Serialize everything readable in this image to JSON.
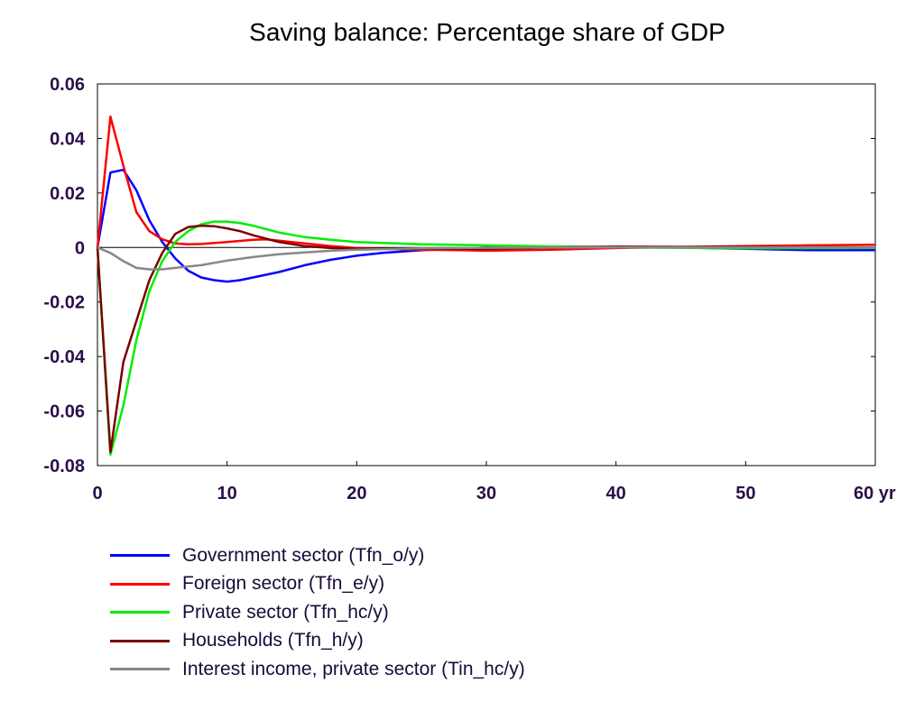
{
  "chart_data": {
    "type": "line",
    "title": "Saving balance: Percentage share of GDP",
    "xlabel": "",
    "ylabel": "",
    "xlim": [
      0,
      60
    ],
    "ylim": [
      -0.08,
      0.06
    ],
    "x_ticks": [
      "0",
      "10",
      "20",
      "30",
      "40",
      "50",
      "60 yr"
    ],
    "x_tick_values": [
      0,
      10,
      20,
      30,
      40,
      50,
      60
    ],
    "y_ticks": [
      "0.06",
      "0.04",
      "0.02",
      "0",
      "-0.02",
      "-0.04",
      "-0.06",
      "-0.08"
    ],
    "y_tick_values": [
      0.06,
      0.04,
      0.02,
      0,
      -0.02,
      -0.04,
      -0.06,
      -0.08
    ],
    "grid": false,
    "zero_line": true,
    "legend_position": "bottom-left",
    "series": [
      {
        "name": "Government sector (Tfn_o/y)",
        "color": "#0000ff",
        "x": [
          0,
          1,
          2,
          3,
          4,
          5,
          6,
          7,
          8,
          9,
          10,
          11,
          12,
          14,
          16,
          18,
          20,
          22,
          25,
          28,
          30,
          35,
          40,
          45,
          50,
          55,
          60
        ],
        "y": [
          0,
          0.0275,
          0.0285,
          0.021,
          0.01,
          0.002,
          -0.004,
          -0.0085,
          -0.011,
          -0.012,
          -0.0125,
          -0.012,
          -0.011,
          -0.009,
          -0.0065,
          -0.0045,
          -0.003,
          -0.002,
          -0.001,
          -0.0005,
          0,
          0.0003,
          0.0002,
          0,
          -0.0005,
          -0.001,
          -0.001
        ]
      },
      {
        "name": "Foreign sector (Tfn_e/y)",
        "color": "#ff0000",
        "x": [
          0,
          1,
          2,
          3,
          4,
          5,
          6,
          7,
          8,
          10,
          12,
          13,
          14,
          16,
          18,
          20,
          22,
          25,
          28,
          30,
          35,
          40,
          45,
          50,
          55,
          60
        ],
        "y": [
          0,
          0.048,
          0.03,
          0.013,
          0.006,
          0.003,
          0.0015,
          0.0012,
          0.0013,
          0.002,
          0.0028,
          0.003,
          0.0025,
          0.0015,
          0.0005,
          -0.0002,
          -0.0005,
          -0.0008,
          -0.001,
          -0.0012,
          -0.0008,
          -0.0002,
          0.0002,
          0.0005,
          0.0008,
          0.001
        ]
      },
      {
        "name": "Private sector (Tfn_hc/y)",
        "color": "#00ee00",
        "x": [
          0,
          1,
          2,
          3,
          4,
          5,
          6,
          7,
          8,
          9,
          10,
          11,
          12,
          14,
          16,
          18,
          20,
          25,
          30,
          35,
          40,
          50,
          60
        ],
        "y": [
          0,
          -0.076,
          -0.058,
          -0.034,
          -0.016,
          -0.005,
          0.002,
          0.006,
          0.0085,
          0.0095,
          0.0095,
          0.009,
          0.008,
          0.0055,
          0.0038,
          0.0028,
          0.002,
          0.0012,
          0.0008,
          0.0004,
          0,
          -0.0003,
          -0.0002
        ]
      },
      {
        "name": "Households (Tfn_h/y)",
        "color": "#7a0000",
        "x": [
          0,
          1,
          2,
          3,
          4,
          5,
          6,
          7,
          8,
          9,
          10,
          11,
          12,
          14,
          16,
          18,
          20,
          25,
          30,
          35,
          40,
          50,
          60
        ],
        "y": [
          0,
          -0.075,
          -0.042,
          -0.027,
          -0.012,
          -0.002,
          0.005,
          0.0075,
          0.008,
          0.0078,
          0.007,
          0.006,
          0.0045,
          0.002,
          0.0005,
          -0.0002,
          -0.0004,
          -0.0005,
          -0.0005,
          0,
          0.0003,
          0.0002,
          0
        ]
      },
      {
        "name": "Interest income, private sector (Tin_hc/y)",
        "color": "#888888",
        "x": [
          0,
          1,
          2,
          3,
          4,
          5,
          6,
          8,
          10,
          12,
          14,
          16,
          18,
          20,
          25,
          30,
          35,
          40,
          50,
          60
        ],
        "y": [
          0,
          -0.002,
          -0.005,
          -0.0075,
          -0.008,
          -0.008,
          -0.0075,
          -0.0065,
          -0.0048,
          -0.0035,
          -0.0025,
          -0.0018,
          -0.0012,
          -0.0008,
          -0.0003,
          -0.0001,
          0,
          0,
          0,
          0
        ]
      }
    ]
  }
}
